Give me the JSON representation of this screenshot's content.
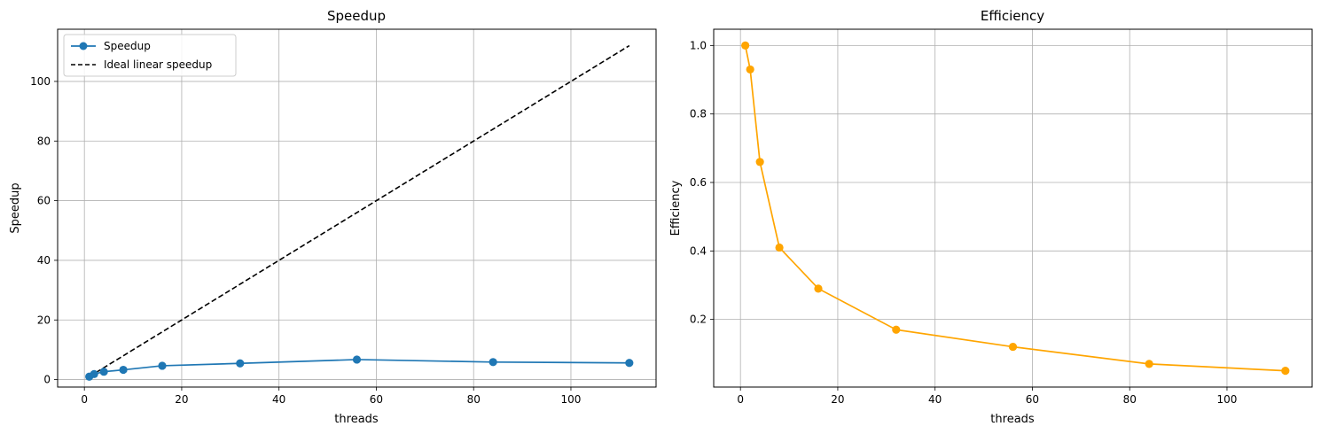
{
  "chart_data": [
    {
      "type": "line",
      "title": "Speedup",
      "xlabel": "threads",
      "ylabel": "Speedup",
      "xlim": [
        -5.5,
        117.5
      ],
      "ylim": [
        -2.5,
        117.5
      ],
      "xticks": [
        0,
        20,
        40,
        60,
        80,
        100
      ],
      "yticks": [
        0,
        20,
        40,
        60,
        80,
        100
      ],
      "grid": true,
      "legend_position": "top-left",
      "x": [
        1,
        2,
        4,
        8,
        16,
        32,
        56,
        84,
        112
      ],
      "series": [
        {
          "name": "Speedup",
          "values": [
            1.0,
            1.86,
            2.64,
            3.28,
            4.64,
            5.44,
            6.72,
            5.88,
            5.6
          ],
          "color": "#1f77b4",
          "style": "solid",
          "marker": "circle"
        },
        {
          "name": "Ideal linear speedup",
          "values": [
            1,
            2,
            4,
            8,
            16,
            32,
            56,
            84,
            112
          ],
          "color": "#000000",
          "style": "dashed",
          "marker": "none"
        }
      ]
    },
    {
      "type": "line",
      "title": "Efficiency",
      "xlabel": "threads",
      "ylabel": "Efficiency",
      "xlim": [
        -5.5,
        117.5
      ],
      "ylim": [
        0.0025,
        1.0475
      ],
      "xticks": [
        0,
        20,
        40,
        60,
        80,
        100
      ],
      "yticks": [
        0.2,
        0.4,
        0.6,
        0.8,
        1.0
      ],
      "grid": true,
      "x": [
        1,
        2,
        4,
        8,
        16,
        32,
        56,
        84,
        112
      ],
      "series": [
        {
          "values": [
            1.0,
            0.93,
            0.66,
            0.41,
            0.29,
            0.17,
            0.12,
            0.07,
            0.05
          ],
          "color": "#ffa500",
          "style": "solid",
          "marker": "circle"
        }
      ]
    }
  ]
}
